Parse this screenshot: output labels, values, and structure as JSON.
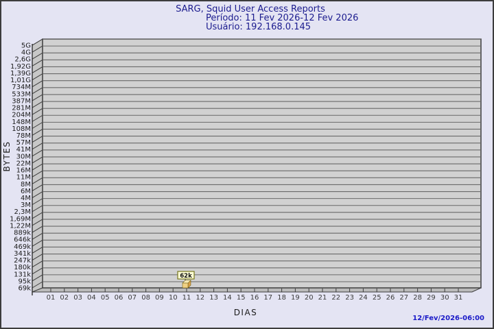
{
  "colors": {
    "page_bg": "#E4E4F3",
    "frame_border": "#3C3C3C",
    "title_color": "#1B1B8E",
    "date_color": "#1A1AC8",
    "plot_bg": "#D1D1D1",
    "wall_3d": "#C7C7C7",
    "floor_3d": "#BBBBBB",
    "gridline": "#696969",
    "axis_line": "#222222",
    "tick_color": "#3C3C3C",
    "bar_front": "#F0D184",
    "bar_top": "#FAEDB9",
    "bar_side": "#D9A14C",
    "bar_outline": "#7A6616",
    "value_box_bg": "#FFFFD6",
    "value_box_border": "#77771F"
  },
  "chart_data": {
    "type": "bar",
    "title": "SARG, Squid User Access Reports",
    "period": "Período: 11 Fev 2026-12 Fev 2026",
    "user": "Usuário: 192.168.0.145",
    "xlabel": "DIAS",
    "ylabel": "BYTES",
    "footer_date": "12/Fev/2026-06:00",
    "y_scale": "log",
    "ylim": [
      "69k",
      "5G"
    ],
    "y_tick_labels": [
      "5G",
      "4G",
      "2,6G",
      "1,92G",
      "1,39G",
      "1,01G",
      "734M",
      "533M",
      "387M",
      "281M",
      "204M",
      "148M",
      "108M",
      "78M",
      "57M",
      "41M",
      "30M",
      "22M",
      "16M",
      "11M",
      "8M",
      "6M",
      "4M",
      "3M",
      "2,3M",
      "1,69M",
      "1,22M",
      "889k",
      "646k",
      "469k",
      "341k",
      "247k",
      "180k",
      "131k",
      "95k",
      "69k"
    ],
    "x_categories": [
      "01",
      "02",
      "03",
      "04",
      "05",
      "06",
      "07",
      "08",
      "09",
      "10",
      "11",
      "12",
      "13",
      "14",
      "15",
      "16",
      "17",
      "18",
      "19",
      "20",
      "21",
      "22",
      "23",
      "24",
      "25",
      "26",
      "27",
      "28",
      "29",
      "30",
      "31"
    ],
    "bars": [
      {
        "day": "11",
        "value_label": "62k",
        "value_bytes_approx": 62000
      }
    ],
    "legend": null,
    "grid": true
  }
}
